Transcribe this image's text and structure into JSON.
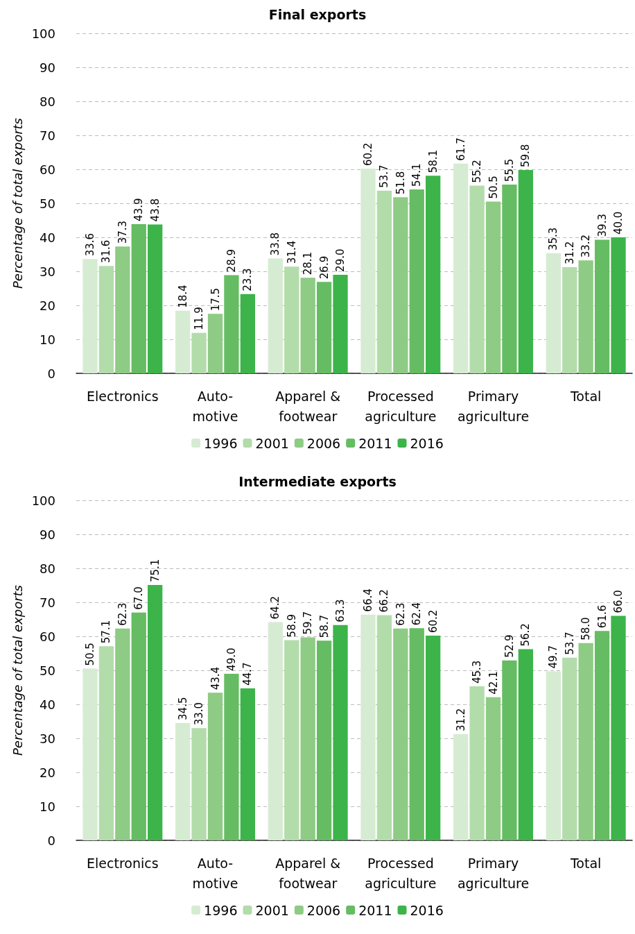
{
  "chart_data": [
    {
      "type": "bar",
      "title": "Final exports",
      "ylabel": "Percentage of total exports",
      "categories": [
        "Electronics",
        "Auto-\nmotive",
        "Apparel &\nfootwear",
        "Processed\nagriculture",
        "Primary\nagriculture",
        "Total"
      ],
      "series": [
        {
          "name": "1996",
          "color": "#d6ecd2",
          "values": [
            33.6,
            18.4,
            33.8,
            60.2,
            61.7,
            35.3
          ],
          "value_labels": [
            "33.6",
            "18.4",
            "33.8",
            "60.2",
            "61.7",
            "35.3"
          ]
        },
        {
          "name": "2001",
          "color": "#b3dcab",
          "values": [
            31.6,
            11.9,
            31.4,
            53.7,
            55.2,
            31.2
          ],
          "value_labels": [
            "31.6",
            "11.9",
            "31.4",
            "53.7",
            "55.2",
            "31.2"
          ]
        },
        {
          "name": "2006",
          "color": "#8ecb84",
          "values": [
            37.3,
            17.5,
            28.1,
            51.8,
            50.5,
            33.2
          ],
          "value_labels": [
            "37.3",
            "17.5",
            "28.1",
            "51.8",
            "50.5",
            "33.2"
          ]
        },
        {
          "name": "2011",
          "color": "#66bc62",
          "values": [
            43.9,
            28.9,
            26.9,
            54.1,
            55.5,
            39.3
          ],
          "value_labels": [
            "43.9",
            "28.9",
            "26.9",
            "54.1",
            "55.5",
            "39.3"
          ]
        },
        {
          "name": "2016",
          "color": "#3cb44a",
          "values": [
            43.8,
            23.3,
            29.0,
            58.1,
            59.8,
            40.0
          ],
          "value_labels": [
            "43.8",
            "23.3",
            "29.0",
            "58.1",
            "59.8",
            "40.0"
          ]
        }
      ],
      "ylim": [
        0,
        100
      ],
      "yticks": [
        0,
        10,
        20,
        30,
        40,
        50,
        60,
        70,
        80,
        90,
        100
      ],
      "grid": "y",
      "legend": "bottom"
    },
    {
      "type": "bar",
      "title": "Intermediate exports",
      "ylabel": "Percentage of total exports",
      "categories": [
        "Electronics",
        "Auto-\nmotive",
        "Apparel &\nfootwear",
        "Processed\nagriculture",
        "Primary\nagriculture",
        "Total"
      ],
      "series": [
        {
          "name": "1996",
          "color": "#d6ecd2",
          "values": [
            50.5,
            34.5,
            64.2,
            66.4,
            31.2,
            49.7
          ],
          "value_labels": [
            "50.5",
            "34.5",
            "64.2",
            "66.4",
            "31.2",
            "49.7"
          ]
        },
        {
          "name": "2001",
          "color": "#b3dcab",
          "values": [
            57.1,
            33.0,
            58.9,
            66.2,
            45.3,
            53.7
          ],
          "value_labels": [
            "57.1",
            "33.0",
            "58.9",
            "66.2",
            "45.3",
            "53.7"
          ]
        },
        {
          "name": "2006",
          "color": "#8ecb84",
          "values": [
            62.3,
            43.4,
            59.7,
            62.3,
            42.1,
            58.0
          ],
          "value_labels": [
            "62.3",
            "43.4",
            "59.7",
            "62.3",
            "42.1",
            "58.0"
          ]
        },
        {
          "name": "2011",
          "color": "#66bc62",
          "values": [
            67.0,
            49.0,
            58.7,
            62.4,
            52.9,
            61.6
          ],
          "value_labels": [
            "67.0",
            "49.0",
            "58.7",
            "62.4",
            "52.9",
            "61.6"
          ]
        },
        {
          "name": "2016",
          "color": "#3cb44a",
          "values": [
            75.1,
            44.7,
            63.3,
            60.2,
            56.2,
            66.0
          ],
          "value_labels": [
            "75.1",
            "44.7",
            "63.3",
            "60.2",
            "56.2",
            "66.0"
          ]
        }
      ],
      "ylim": [
        0,
        100
      ],
      "yticks": [
        0,
        10,
        20,
        30,
        40,
        50,
        60,
        70,
        80,
        90,
        100
      ],
      "grid": "y",
      "legend": "bottom"
    }
  ]
}
